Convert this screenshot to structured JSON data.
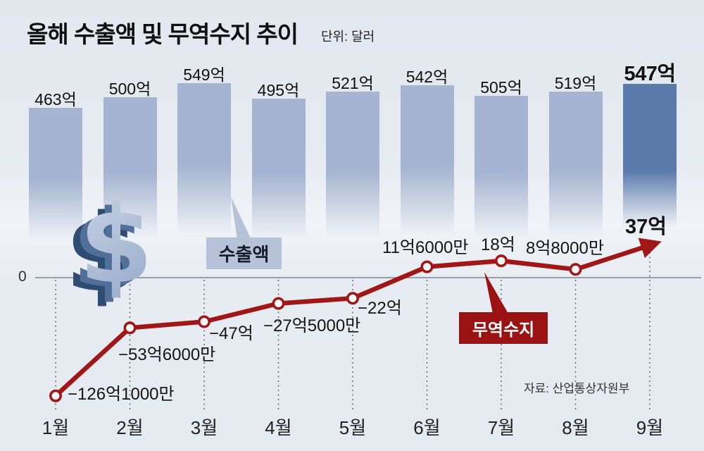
{
  "header": {
    "title": "올해 수출액 및 무역수지 추이",
    "unit": "단위: 달러"
  },
  "axis": {
    "zero_label": "0"
  },
  "callouts": {
    "exports": "수출액",
    "trade_balance": "무역수지"
  },
  "footer": {
    "source": "자료: 산업통상자원부"
  },
  "symbols": {
    "dollar": "$"
  },
  "colors": {
    "background": "#e5eaf1",
    "bar": "#a5b4d0",
    "bar_highlight": "#5b7bad",
    "line": "#a11616",
    "trade_callout_bg": "#9a1212",
    "exports_callout_bg": "#b5c2d7",
    "text": "#141414"
  },
  "chart_data": {
    "type": "bar+line",
    "title": "올해 수출액 및 무역수지 추이",
    "unit_label": "단위: 달러",
    "categories": [
      "1월",
      "2월",
      "3월",
      "4월",
      "5월",
      "6월",
      "7월",
      "8월",
      "9월"
    ],
    "series": [
      {
        "name": "수출액",
        "type": "bar",
        "values": [
          463,
          500,
          549,
          495,
          521,
          542,
          505,
          519,
          547
        ],
        "labels": [
          "463억",
          "500억",
          "549억",
          "495억",
          "521억",
          "542억",
          "505억",
          "519억",
          "547억"
        ],
        "highlight_index": 8
      },
      {
        "name": "무역수지",
        "type": "line",
        "values": [
          -126.1,
          -53.6,
          -47,
          -27.5,
          -22,
          11.6,
          18,
          8.8,
          37
        ],
        "labels": [
          "−126억1000만",
          "−53억6000만",
          "−47억",
          "−27억5000만",
          "−22억",
          "11억6000만",
          "18억",
          "8억8000만",
          "37억"
        ]
      }
    ],
    "grid": "dashed-vertical-below-zero",
    "legend_position": "callout-boxes"
  }
}
